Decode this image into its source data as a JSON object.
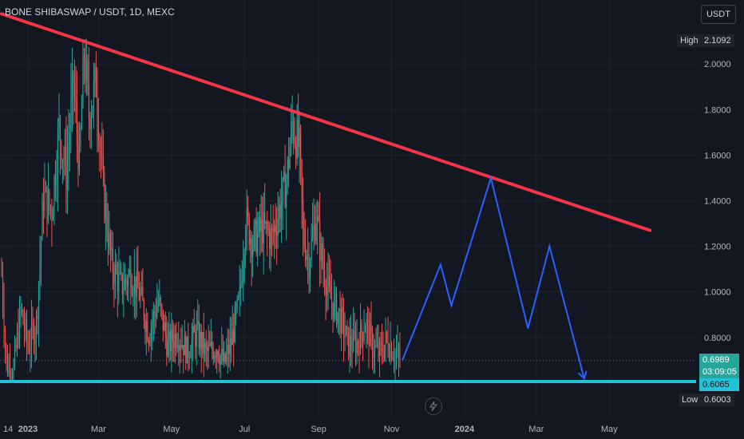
{
  "header": {
    "title": "BONE SHIBASWAP / USDT, 1D, MEXC",
    "currency": "USDT"
  },
  "price_labels": {
    "high_label": "High",
    "high_value": "2.1092",
    "current_price": "0.6989",
    "countdown": "03:09:05",
    "support_value": "0.6065",
    "low_label": "Low",
    "low_value": "0.6003"
  },
  "colors": {
    "background": "#131722",
    "candle_up": "#26a69a",
    "candle_down": "#ef5350",
    "resistance_line": "#f23645",
    "support_line": "#22c3d6",
    "projection_line": "#2962ff"
  },
  "icons": {
    "event_marker": "lightning-icon"
  },
  "chart_data": {
    "type": "candlestick",
    "title": "BONE SHIBASWAP / USDT, 1D, MEXC",
    "y_ticks": [
      "0.8000",
      "1.0000",
      "1.2000",
      "1.4000",
      "1.6000",
      "1.8000",
      "2.0000"
    ],
    "x_ticks": [
      "14",
      "2023",
      "Mar",
      "May",
      "Jul",
      "Sep",
      "Nov",
      "2024",
      "Mar",
      "May"
    ],
    "ylim": [
      0.55,
      2.22
    ],
    "grid": true,
    "price_path": [
      [
        "2022-12-10",
        1.08
      ],
      [
        "2022-12-14",
        0.68
      ],
      [
        "2022-12-20",
        0.66
      ],
      [
        "2022-12-26",
        0.92
      ],
      [
        "2023-01-01",
        0.76
      ],
      [
        "2023-01-08",
        0.86
      ],
      [
        "2023-01-14",
        1.42
      ],
      [
        "2023-01-21",
        1.36
      ],
      [
        "2023-01-27",
        1.72
      ],
      [
        "2023-02-02",
        1.52
      ],
      [
        "2023-02-08",
        1.92
      ],
      [
        "2023-02-13",
        1.55
      ],
      [
        "2023-02-17",
        2.06
      ],
      [
        "2023-02-21",
        1.78
      ],
      [
        "2023-02-27",
        1.92
      ],
      [
        "2023-03-05",
        1.44
      ],
      [
        "2023-03-12",
        1.12
      ],
      [
        "2023-03-20",
        1.02
      ],
      [
        "2023-03-28",
        1.08
      ],
      [
        "2023-04-05",
        0.98
      ],
      [
        "2023-04-12",
        0.82
      ],
      [
        "2023-04-20",
        0.96
      ],
      [
        "2023-04-28",
        0.76
      ],
      [
        "2023-05-06",
        0.82
      ],
      [
        "2023-05-14",
        0.74
      ],
      [
        "2023-05-22",
        0.82
      ],
      [
        "2023-05-30",
        0.73
      ],
      [
        "2023-06-08",
        0.76
      ],
      [
        "2023-06-14",
        0.68
      ],
      [
        "2023-06-20",
        0.78
      ],
      [
        "2023-06-27",
        0.97
      ],
      [
        "2023-07-02",
        1.32
      ],
      [
        "2023-07-08",
        1.22
      ],
      [
        "2023-07-16",
        1.28
      ],
      [
        "2023-07-24",
        1.24
      ],
      [
        "2023-07-30",
        1.36
      ],
      [
        "2023-08-05",
        1.48
      ],
      [
        "2023-08-10",
        1.74
      ],
      [
        "2023-08-16",
        1.62
      ],
      [
        "2023-08-19",
        1.25
      ],
      [
        "2023-08-24",
        1.14
      ],
      [
        "2023-08-30",
        1.34
      ],
      [
        "2023-09-03",
        1.16
      ],
      [
        "2023-09-10",
        0.98
      ],
      [
        "2023-09-18",
        0.9
      ],
      [
        "2023-09-26",
        0.77
      ],
      [
        "2023-10-04",
        0.78
      ],
      [
        "2023-10-10",
        0.87
      ],
      [
        "2023-10-16",
        0.76
      ],
      [
        "2023-10-22",
        0.73
      ],
      [
        "2023-10-28",
        0.79
      ],
      [
        "2023-11-04",
        0.73
      ],
      [
        "2023-11-08",
        0.7
      ]
    ],
    "last_price": 0.6989,
    "high": 2.1092,
    "low": 0.6003,
    "resistance_line": [
      [
        "2022-12-10",
        2.22
      ],
      [
        "2024-06-04",
        1.27
      ]
    ],
    "support_level": 0.6065,
    "projection_path": [
      [
        "2023-11-10",
        0.7
      ],
      [
        "2023-12-12",
        1.12
      ],
      [
        "2023-12-21",
        0.94
      ],
      [
        "2024-01-23",
        1.5
      ],
      [
        "2024-02-23",
        0.84
      ],
      [
        "2024-03-12",
        1.2
      ],
      [
        "2024-04-10",
        0.62
      ]
    ]
  }
}
